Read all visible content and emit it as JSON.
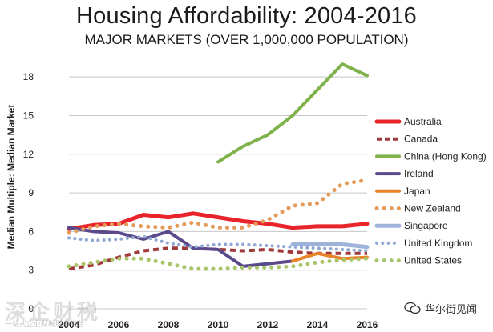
{
  "title": "Housing Affordability: 2004-2016",
  "subtitle": "MAJOR MARKETS (OVER 1,000,000 POPULATION)",
  "watermark": {
    "left_text": "深企财税",
    "left_small": "一站式企业财税服务平台",
    "right_text": "华尔街见闻"
  },
  "chart_data": {
    "type": "line",
    "title": "Housing Affordability: 2004-2016",
    "subtitle": "MAJOR MARKETS (OVER 1,000,000 POPULATION)",
    "xlabel": "",
    "ylabel": "Median Multiple: Median Market",
    "xlim": [
      2004,
      2016
    ],
    "ylim": [
      0,
      19.5
    ],
    "x_ticks": [
      "2004",
      "2006",
      "2008",
      "2010",
      "2012",
      "2014",
      "2016"
    ],
    "y_ticks": [
      "0",
      "3",
      "6",
      "9",
      "12",
      "15",
      "18"
    ],
    "grid": "horizontal",
    "legend_position": "right",
    "series": [
      {
        "name": "Australia",
        "color": "#e8232a",
        "style": "solid",
        "width": 5,
        "x": [
          2004,
          2005,
          2006,
          2007,
          2008,
          2009,
          2010,
          2011,
          2012,
          2013,
          2014,
          2015,
          2016
        ],
        "y": [
          6.2,
          6.5,
          6.6,
          7.3,
          7.1,
          7.4,
          7.1,
          6.8,
          6.6,
          6.3,
          6.4,
          6.4,
          6.6
        ]
      },
      {
        "name": "Canada",
        "color": "#a0393a",
        "style": "dashed",
        "width": 4,
        "x": [
          2004,
          2005,
          2006,
          2007,
          2008,
          2009,
          2010,
          2011,
          2012,
          2013,
          2014,
          2015,
          2016
        ],
        "y": [
          3.1,
          3.4,
          4.0,
          4.5,
          4.7,
          4.7,
          4.6,
          4.5,
          4.6,
          4.4,
          4.3,
          4.3,
          4.3
        ]
      },
      {
        "name": "China (Hong Kong)",
        "color": "#7fb24a",
        "style": "solid",
        "width": 4,
        "x": [
          2010,
          2011,
          2012,
          2013,
          2014,
          2015,
          2016
        ],
        "y": [
          11.4,
          12.6,
          13.5,
          15.0,
          17.0,
          19.0,
          18.1
        ]
      },
      {
        "name": "Ireland",
        "color": "#5b4a8b",
        "style": "solid",
        "width": 4,
        "x": [
          2004,
          2005,
          2006,
          2007,
          2008,
          2009,
          2010,
          2011,
          2012,
          2013
        ],
        "y": [
          6.3,
          6.0,
          5.9,
          5.4,
          6.0,
          4.7,
          4.6,
          3.3,
          3.5,
          3.7
        ]
      },
      {
        "name": "Japan",
        "color": "#e8832a",
        "style": "solid",
        "width": 4,
        "x": [
          2013,
          2014,
          2015,
          2016
        ],
        "y": [
          3.7,
          4.3,
          3.9,
          4.0
        ]
      },
      {
        "name": "New Zealand",
        "color": "#e39b5a",
        "style": "dotted",
        "width": 5,
        "x": [
          2004,
          2005,
          2006,
          2007,
          2008,
          2009,
          2010,
          2011,
          2012,
          2013,
          2014,
          2015,
          2016
        ],
        "y": [
          5.9,
          6.4,
          6.6,
          6.4,
          6.3,
          6.7,
          6.3,
          6.3,
          6.9,
          8.0,
          8.2,
          9.7,
          10.0
        ]
      },
      {
        "name": "Singapore",
        "color": "#9fb3d9",
        "style": "solid",
        "width": 5,
        "x": [
          2013,
          2014,
          2015,
          2016
        ],
        "y": [
          5.0,
          5.0,
          5.0,
          4.8
        ]
      },
      {
        "name": "United Kingdom",
        "color": "#8fa8d3",
        "style": "dotted",
        "width": 4,
        "x": [
          2004,
          2005,
          2006,
          2007,
          2008,
          2009,
          2010,
          2011,
          2012,
          2013,
          2014,
          2015,
          2016
        ],
        "y": [
          5.5,
          5.3,
          5.4,
          5.6,
          5.1,
          4.8,
          5.0,
          5.0,
          4.9,
          4.8,
          4.7,
          4.6,
          4.5
        ]
      },
      {
        "name": "United States",
        "color": "#a9c56a",
        "style": "dotted",
        "width": 5,
        "x": [
          2004,
          2005,
          2006,
          2007,
          2008,
          2009,
          2010,
          2011,
          2012,
          2013,
          2014,
          2015,
          2016
        ],
        "y": [
          3.3,
          3.6,
          3.9,
          3.9,
          3.5,
          3.1,
          3.1,
          3.2,
          3.2,
          3.3,
          3.6,
          3.8,
          3.9
        ]
      }
    ]
  }
}
